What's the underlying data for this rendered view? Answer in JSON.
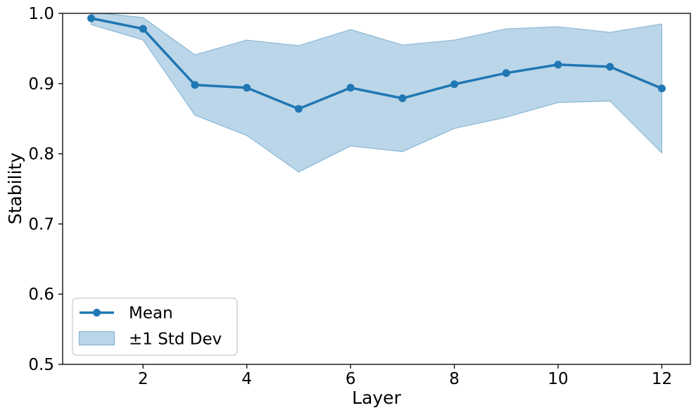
{
  "chart_data": {
    "type": "line",
    "title": "",
    "xlabel": "Layer",
    "ylabel": "Stability",
    "x": [
      1,
      2,
      3,
      4,
      5,
      6,
      7,
      8,
      9,
      10,
      11,
      12
    ],
    "series": [
      {
        "name": "Mean",
        "values": [
          0.993,
          0.978,
          0.898,
          0.894,
          0.864,
          0.894,
          0.879,
          0.899,
          0.915,
          0.927,
          0.924,
          0.893
        ]
      }
    ],
    "band": {
      "name": "±1 Std Dev",
      "std": [
        0.009,
        0.016,
        0.043,
        0.068,
        0.09,
        0.083,
        0.076,
        0.063,
        0.063,
        0.054,
        0.049,
        0.092
      ]
    },
    "legend": [
      "Mean",
      "±1 Std Dev"
    ],
    "legend_position": "lower left",
    "xlim": [
      0.45,
      12.55
    ],
    "ylim": [
      0.5,
      1.0
    ],
    "xticks": [
      2,
      4,
      6,
      8,
      10,
      12
    ],
    "xticklabels": [
      "2",
      "4",
      "6",
      "8",
      "10",
      "12"
    ],
    "yticks": [
      0.5,
      0.6,
      0.7,
      0.8,
      0.9,
      1.0
    ],
    "yticklabels": [
      "0.5",
      "0.6",
      "0.7",
      "0.8",
      "0.9",
      "1.0"
    ],
    "grid": false,
    "colors": {
      "line": "#1f77b4",
      "marker": "#1f77b4",
      "band_fill": "rgba(31,119,180,0.30)",
      "band_edge": "rgba(31,119,180,0.42)",
      "spine": "#000000",
      "legend_border": "#cccccc",
      "background": "#ffffff"
    }
  }
}
